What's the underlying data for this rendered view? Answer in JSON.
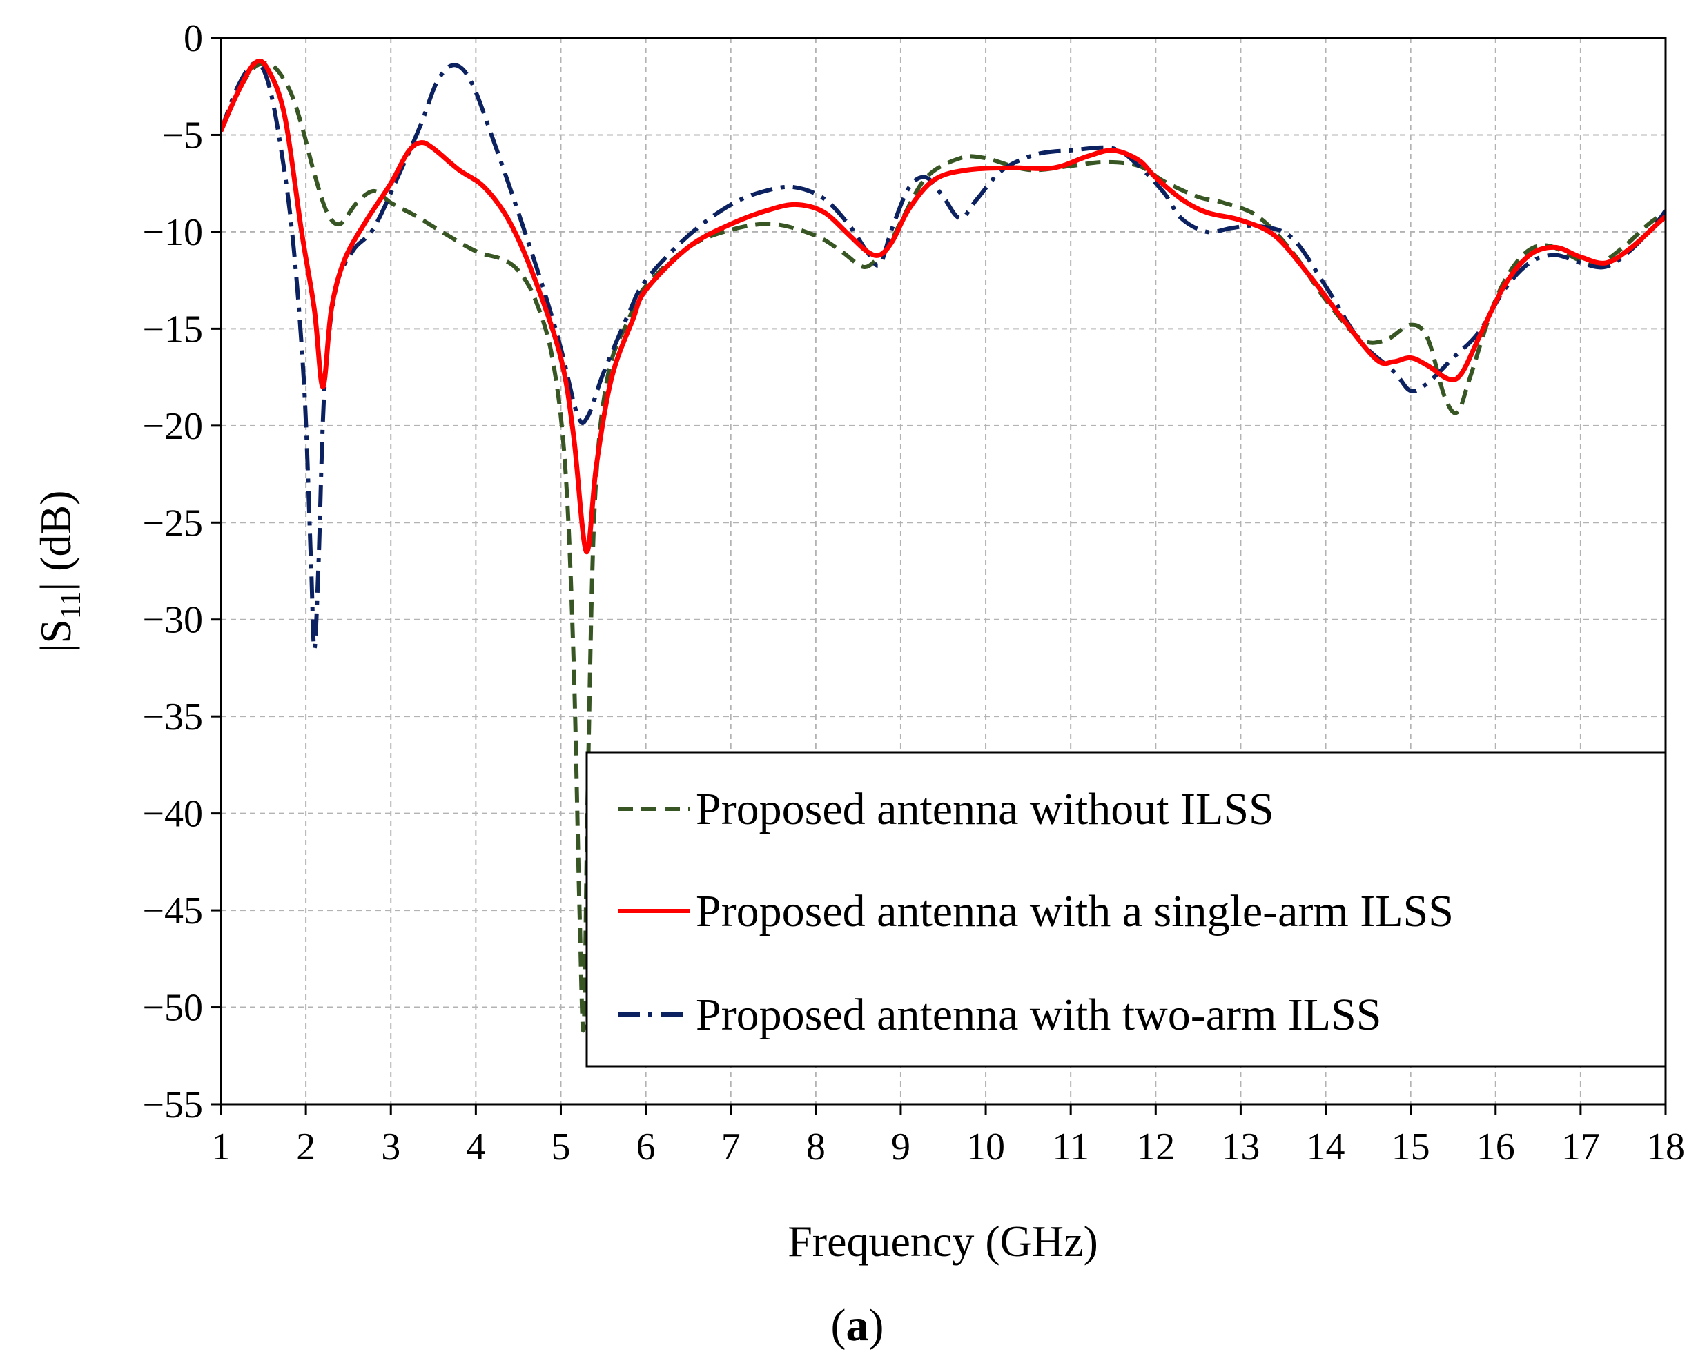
{
  "chart_data": {
    "type": "line",
    "xlabel": "Frequency (GHz)",
    "ylabel_prefix": "|S",
    "ylabel_sub": "11",
    "ylabel_suffix": "| (dB)",
    "caption_open": "(",
    "caption_letter": "a",
    "caption_close": ")",
    "xlim": [
      1,
      18
    ],
    "ylim": [
      -55,
      0
    ],
    "xticks": [
      1,
      2,
      3,
      4,
      5,
      6,
      7,
      8,
      9,
      10,
      11,
      12,
      13,
      14,
      15,
      16,
      17,
      18
    ],
    "yticks": [
      0,
      -5,
      -10,
      -15,
      -20,
      -25,
      -30,
      -35,
      -40,
      -45,
      -50,
      -55
    ],
    "ytick_labels": [
      "0",
      "−5",
      "−10",
      "−15",
      "−20",
      "−25",
      "−30",
      "−35",
      "−40",
      "−45",
      "−50",
      "−55"
    ],
    "grid": true,
    "legend_position": "bottom-right",
    "series": [
      {
        "name": "Proposed antenna without ILSS",
        "color": "#375623",
        "style": "dashed",
        "points": [
          [
            1.0,
            -4.8
          ],
          [
            1.2,
            -2.8
          ],
          [
            1.4,
            -1.5
          ],
          [
            1.6,
            -1.4
          ],
          [
            1.8,
            -2.6
          ],
          [
            1.95,
            -4.5
          ],
          [
            2.1,
            -7.0
          ],
          [
            2.25,
            -9.0
          ],
          [
            2.4,
            -9.6
          ],
          [
            2.6,
            -8.5
          ],
          [
            2.8,
            -7.9
          ],
          [
            3.0,
            -8.5
          ],
          [
            3.3,
            -9.2
          ],
          [
            3.6,
            -10.0
          ],
          [
            4.0,
            -11.0
          ],
          [
            4.3,
            -11.4
          ],
          [
            4.5,
            -12.0
          ],
          [
            4.7,
            -13.5
          ],
          [
            4.9,
            -16.5
          ],
          [
            5.05,
            -22.0
          ],
          [
            5.15,
            -32.0
          ],
          [
            5.22,
            -45.0
          ],
          [
            5.27,
            -51.0
          ],
          [
            5.32,
            -38.0
          ],
          [
            5.4,
            -24.0
          ],
          [
            5.55,
            -17.5
          ],
          [
            5.8,
            -14.5
          ],
          [
            6.0,
            -12.8
          ],
          [
            6.5,
            -10.8
          ],
          [
            7.0,
            -9.9
          ],
          [
            7.5,
            -9.6
          ],
          [
            8.0,
            -10.2
          ],
          [
            8.3,
            -11.0
          ],
          [
            8.55,
            -11.8
          ],
          [
            8.7,
            -11.5
          ],
          [
            8.85,
            -10.8
          ],
          [
            9.0,
            -9.5
          ],
          [
            9.3,
            -7.2
          ],
          [
            9.7,
            -6.2
          ],
          [
            10.0,
            -6.2
          ],
          [
            10.5,
            -6.8
          ],
          [
            11.0,
            -6.6
          ],
          [
            11.4,
            -6.4
          ],
          [
            11.8,
            -6.6
          ],
          [
            12.1,
            -7.4
          ],
          [
            12.5,
            -8.2
          ],
          [
            12.8,
            -8.5
          ],
          [
            13.2,
            -9.2
          ],
          [
            13.6,
            -11.0
          ],
          [
            14.0,
            -13.5
          ],
          [
            14.4,
            -15.5
          ],
          [
            14.7,
            -15.6
          ],
          [
            15.0,
            -14.8
          ],
          [
            15.2,
            -15.5
          ],
          [
            15.4,
            -18.5
          ],
          [
            15.55,
            -19.3
          ],
          [
            15.7,
            -17.5
          ],
          [
            16.0,
            -13.5
          ],
          [
            16.3,
            -11.3
          ],
          [
            16.6,
            -10.7
          ],
          [
            17.0,
            -11.5
          ],
          [
            17.2,
            -11.7
          ],
          [
            17.5,
            -10.8
          ],
          [
            17.8,
            -9.6
          ],
          [
            18.0,
            -9.0
          ]
        ]
      },
      {
        "name": "Proposed antenna with a single-arm ILSS",
        "color": "#ff0000",
        "style": "solid",
        "points": [
          [
            1.0,
            -4.8
          ],
          [
            1.2,
            -2.8
          ],
          [
            1.4,
            -1.3
          ],
          [
            1.55,
            -1.6
          ],
          [
            1.75,
            -4.0
          ],
          [
            1.95,
            -10.0
          ],
          [
            2.1,
            -14.0
          ],
          [
            2.2,
            -18.0
          ],
          [
            2.3,
            -14.0
          ],
          [
            2.45,
            -11.5
          ],
          [
            2.7,
            -9.5
          ],
          [
            3.0,
            -7.5
          ],
          [
            3.2,
            -5.9
          ],
          [
            3.35,
            -5.4
          ],
          [
            3.5,
            -5.7
          ],
          [
            3.8,
            -6.8
          ],
          [
            4.1,
            -7.7
          ],
          [
            4.4,
            -9.5
          ],
          [
            4.7,
            -12.5
          ],
          [
            5.0,
            -16.5
          ],
          [
            5.15,
            -20.5
          ],
          [
            5.3,
            -26.5
          ],
          [
            5.42,
            -22.0
          ],
          [
            5.6,
            -17.5
          ],
          [
            5.85,
            -14.5
          ],
          [
            6.0,
            -13.0
          ],
          [
            6.5,
            -10.8
          ],
          [
            7.0,
            -9.6
          ],
          [
            7.5,
            -8.8
          ],
          [
            7.8,
            -8.6
          ],
          [
            8.1,
            -9.0
          ],
          [
            8.4,
            -10.2
          ],
          [
            8.6,
            -11.0
          ],
          [
            8.75,
            -11.2
          ],
          [
            8.9,
            -10.5
          ],
          [
            9.1,
            -8.8
          ],
          [
            9.4,
            -7.3
          ],
          [
            9.8,
            -6.8
          ],
          [
            10.3,
            -6.7
          ],
          [
            10.8,
            -6.7
          ],
          [
            11.2,
            -6.1
          ],
          [
            11.5,
            -5.8
          ],
          [
            11.8,
            -6.3
          ],
          [
            12.0,
            -7.2
          ],
          [
            12.3,
            -8.3
          ],
          [
            12.6,
            -9.0
          ],
          [
            13.0,
            -9.4
          ],
          [
            13.4,
            -10.2
          ],
          [
            13.8,
            -12.2
          ],
          [
            14.2,
            -14.5
          ],
          [
            14.6,
            -16.6
          ],
          [
            14.8,
            -16.7
          ],
          [
            15.0,
            -16.5
          ],
          [
            15.2,
            -16.9
          ],
          [
            15.45,
            -17.6
          ],
          [
            15.6,
            -17.3
          ],
          [
            15.8,
            -15.5
          ],
          [
            16.1,
            -12.8
          ],
          [
            16.4,
            -11.2
          ],
          [
            16.7,
            -10.8
          ],
          [
            17.0,
            -11.3
          ],
          [
            17.3,
            -11.6
          ],
          [
            17.6,
            -10.8
          ],
          [
            17.9,
            -9.6
          ],
          [
            18.0,
            -9.2
          ]
        ]
      },
      {
        "name": "Proposed antenna with two-arm ILSS",
        "color": "#0b2160",
        "style": "dashdot",
        "points": [
          [
            1.0,
            -4.8
          ],
          [
            1.2,
            -2.5
          ],
          [
            1.4,
            -1.3
          ],
          [
            1.55,
            -2.2
          ],
          [
            1.7,
            -5.5
          ],
          [
            1.85,
            -10.5
          ],
          [
            1.98,
            -18.0
          ],
          [
            2.06,
            -27.0
          ],
          [
            2.1,
            -31.5
          ],
          [
            2.15,
            -27.0
          ],
          [
            2.22,
            -18.0
          ],
          [
            2.35,
            -13.0
          ],
          [
            2.55,
            -11.0
          ],
          [
            2.8,
            -9.8
          ],
          [
            3.1,
            -7.0
          ],
          [
            3.35,
            -4.5
          ],
          [
            3.55,
            -2.2
          ],
          [
            3.75,
            -1.4
          ],
          [
            3.95,
            -2.3
          ],
          [
            4.2,
            -5.2
          ],
          [
            4.5,
            -9.0
          ],
          [
            4.8,
            -13.0
          ],
          [
            5.0,
            -16.0
          ],
          [
            5.2,
            -19.5
          ],
          [
            5.32,
            -19.5
          ],
          [
            5.5,
            -17.3
          ],
          [
            5.8,
            -14.2
          ],
          [
            6.0,
            -12.5
          ],
          [
            6.5,
            -10.2
          ],
          [
            7.0,
            -8.6
          ],
          [
            7.4,
            -7.9
          ],
          [
            7.75,
            -7.7
          ],
          [
            8.1,
            -8.3
          ],
          [
            8.4,
            -9.7
          ],
          [
            8.6,
            -11.0
          ],
          [
            8.75,
            -11.7
          ],
          [
            8.9,
            -9.8
          ],
          [
            9.1,
            -7.7
          ],
          [
            9.3,
            -7.2
          ],
          [
            9.5,
            -8.2
          ],
          [
            9.7,
            -9.3
          ],
          [
            9.9,
            -8.3
          ],
          [
            10.2,
            -6.8
          ],
          [
            10.6,
            -6.0
          ],
          [
            11.0,
            -5.8
          ],
          [
            11.5,
            -5.7
          ],
          [
            11.8,
            -6.6
          ],
          [
            12.1,
            -8.0
          ],
          [
            12.3,
            -9.3
          ],
          [
            12.6,
            -10.0
          ],
          [
            12.9,
            -9.8
          ],
          [
            13.2,
            -9.7
          ],
          [
            13.6,
            -10.3
          ],
          [
            14.0,
            -12.8
          ],
          [
            14.4,
            -15.6
          ],
          [
            14.8,
            -17.2
          ],
          [
            15.0,
            -18.2
          ],
          [
            15.2,
            -17.8
          ],
          [
            15.5,
            -16.5
          ],
          [
            15.8,
            -15.2
          ],
          [
            16.1,
            -13.0
          ],
          [
            16.4,
            -11.6
          ],
          [
            16.7,
            -11.2
          ],
          [
            17.0,
            -11.6
          ],
          [
            17.3,
            -11.8
          ],
          [
            17.6,
            -10.9
          ],
          [
            17.9,
            -9.5
          ],
          [
            18.0,
            -8.9
          ]
        ]
      }
    ]
  }
}
